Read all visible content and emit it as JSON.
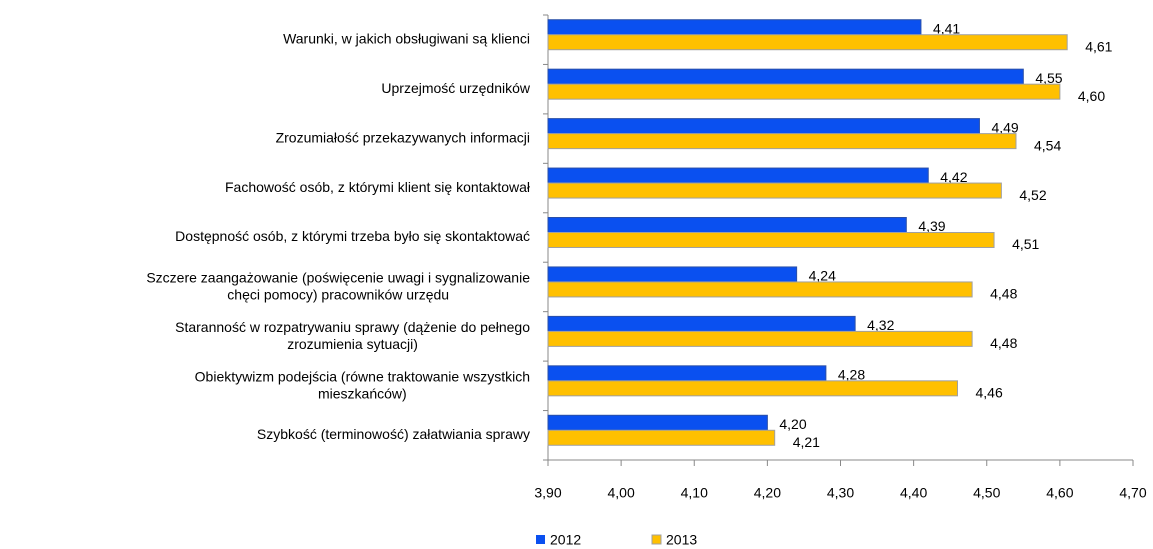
{
  "chart_data": {
    "type": "bar",
    "orientation": "horizontal",
    "categories": [
      "Warunki, w jakich obsługiwani są klienci",
      "Uprzejmość urzędników",
      "Zrozumiałość przekazywanych informacji",
      "Fachowość osób, z którymi klient się kontaktował",
      "Dostępność osób, z którymi trzeba było się skontaktować",
      "Szczere zaangażowanie (poświęcenie uwagi i sygnalizowanie\nchęci pomocy) pracowników urzędu",
      "Staranność w rozpatrywaniu sprawy (dążenie do pełnego\nzrozumienia sytuacji)",
      "Obiektywizm podejścia (równe traktowanie wszystkich\nmieszkańców)",
      "Szybkość (terminowość) załatwiania sprawy"
    ],
    "series": [
      {
        "name": "2012",
        "color": "#0a50f0",
        "values": [
          4.41,
          4.55,
          4.49,
          4.42,
          4.39,
          4.24,
          4.32,
          4.28,
          4.2
        ],
        "value_labels": [
          "4,41",
          "4,55",
          "4,49",
          "4,42",
          "4,39",
          "4,24",
          "4,32",
          "4,28",
          "4,20"
        ]
      },
      {
        "name": "2013",
        "color": "#ffc000",
        "values": [
          4.61,
          4.6,
          4.54,
          4.52,
          4.51,
          4.48,
          4.48,
          4.46,
          4.21
        ],
        "value_labels": [
          "4,61",
          "4,60",
          "4,54",
          "4,52",
          "4,51",
          "4,48",
          "4,48",
          "4,46",
          "4,21"
        ]
      }
    ],
    "xlim": [
      3.9,
      4.7
    ],
    "xticks": [
      {
        "value": 3.9,
        "label": "3,90"
      },
      {
        "value": 4.0,
        "label": "4,00"
      },
      {
        "value": 4.1,
        "label": "4,10"
      },
      {
        "value": 4.2,
        "label": "4,20"
      },
      {
        "value": 4.3,
        "label": "4,30"
      },
      {
        "value": 4.4,
        "label": "4,40"
      },
      {
        "value": 4.5,
        "label": "4,50"
      },
      {
        "value": 4.6,
        "label": "4,60"
      },
      {
        "value": 4.7,
        "label": "4,70"
      }
    ],
    "legend": "bottom-left"
  }
}
